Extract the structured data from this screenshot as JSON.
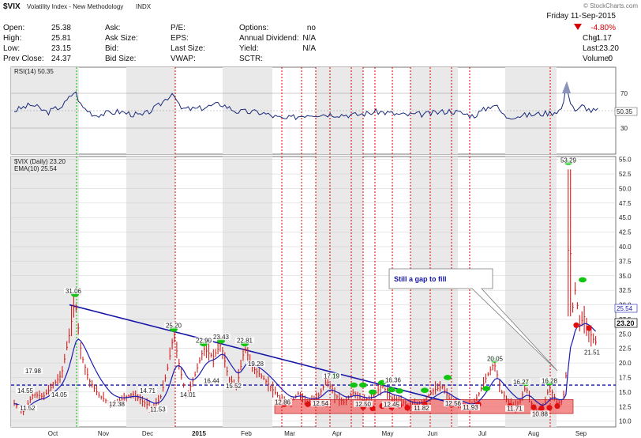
{
  "header": {
    "symbol": "$VIX",
    "name": "Volatility Index - New Methodology",
    "exchange": "INDX",
    "watermark": "© StockCharts.com",
    "date_line": "Friday 11-Sep-2015",
    "change_pct": "-4.80%",
    "chg_label": "Chg:",
    "chg_value": "-1.17",
    "last_label": "Last:",
    "last_value": "23.20",
    "volume_label": "Volume:",
    "volume_value": "0",
    "quote": [
      {
        "label": "Open:",
        "value": "25.38"
      },
      {
        "label": "High:",
        "value": "25.81"
      },
      {
        "label": "Low:",
        "value": "23.15"
      },
      {
        "label": "Prev Close:",
        "value": "24.37"
      }
    ],
    "col2": [
      "Ask:",
      "Ask Size:",
      "Bid:",
      "Bid Size:"
    ],
    "col3": [
      "P/E:",
      "EPS:",
      "Last Size:",
      "VWAP:"
    ],
    "col4": [
      {
        "label": "Options:",
        "value": "no"
      },
      {
        "label": "Annual Dividend:",
        "value": "N/A"
      },
      {
        "label": "Yield:",
        "value": "N/A"
      },
      {
        "label": "SCTR:",
        "value": ""
      }
    ]
  },
  "rsi_panel": {
    "legend": "RSI(14) 50.35",
    "last_value": "50.35",
    "ticks": [
      "70",
      "50",
      "30"
    ]
  },
  "price_panel": {
    "legend_price": "$VIX (Daily) 23.20",
    "legend_ema": "EMA(10) 25.54",
    "ema_last": "25.54",
    "price_last": "23.20",
    "annotation": "Still a gap to fill"
  },
  "colors": {
    "price_bar": "#d32020",
    "ema": "#1b1bb0",
    "trendline": "#1515a8",
    "support_line": "#1515a8",
    "support_box": "#f06a6a",
    "vline_red": "#e00000",
    "vline_green": "#00c000",
    "green_marker": "#11c411",
    "red_marker": "#e01010",
    "shade": "#e9e9e9"
  },
  "chart_data": [
    {
      "type": "line",
      "title": "RSI(14)",
      "ylim": [
        0,
        100
      ],
      "yticks": [
        70,
        50,
        30
      ],
      "series": [
        {
          "name": "RSI(14)",
          "x": [
            "Oct",
            "Nov",
            "Dec",
            "2015",
            "Feb",
            "Mar",
            "Apr",
            "May",
            "Jun",
            "Jul",
            "Aug",
            "Sep"
          ],
          "values": [
            58,
            52,
            50,
            62,
            55,
            44,
            46,
            48,
            52,
            55,
            78,
            50.35
          ]
        }
      ]
    },
    {
      "type": "line",
      "title": "$VIX (Daily)",
      "ylim": [
        10,
        55
      ],
      "yticks": [
        10.0,
        12.5,
        15.0,
        17.5,
        20.0,
        22.5,
        25.0,
        27.5,
        30.0,
        32.5,
        35.0,
        37.5,
        40.0,
        42.5,
        45.0,
        47.5,
        50.0,
        52.5,
        55.0
      ],
      "x_ticks": [
        "Oct",
        "Nov",
        "Dec",
        "2015",
        "Feb",
        "Mar",
        "Apr",
        "May",
        "Jun",
        "Jul",
        "Aug",
        "Sep"
      ],
      "series": [
        {
          "name": "$VIX (Daily)",
          "last": 23.2
        },
        {
          "name": "EMA(10)",
          "last": 25.54
        }
      ],
      "labels": [
        {
          "text": "11.52",
          "x": "Oct",
          "y": 11.52
        },
        {
          "text": "14.55",
          "x": "Oct",
          "y": 14.55
        },
        {
          "text": "14.05",
          "x": "Oct",
          "y": 14.05
        },
        {
          "text": "17.98",
          "x": "Oct",
          "y": 17.98
        },
        {
          "text": "31.06",
          "x": "Oct",
          "y": 31.06
        },
        {
          "text": "12.38",
          "x": "Nov",
          "y": 12.38
        },
        {
          "text": "14.71",
          "x": "Dec",
          "y": 14.71
        },
        {
          "text": "11.53",
          "x": "Dec",
          "y": 11.53
        },
        {
          "text": "25.20",
          "x": "Dec",
          "y": 25.2
        },
        {
          "text": "14.01",
          "x": "2015",
          "y": 14.01
        },
        {
          "text": "22.90",
          "x": "2015",
          "y": 22.9
        },
        {
          "text": "23.43",
          "x": "2015",
          "y": 23.43
        },
        {
          "text": "16.44",
          "x": "2015",
          "y": 16.44
        },
        {
          "text": "15.52",
          "x": "Feb",
          "y": 15.52
        },
        {
          "text": "22.81",
          "x": "Feb",
          "y": 22.81
        },
        {
          "text": "19.28",
          "x": "Feb",
          "y": 19.28
        },
        {
          "text": "12.86",
          "x": "Mar",
          "y": 12.86
        },
        {
          "text": "12.54",
          "x": "Mar",
          "y": 12.54
        },
        {
          "text": "17.19",
          "x": "Apr",
          "y": 17.19
        },
        {
          "text": "12.50",
          "x": "Apr",
          "y": 12.5
        },
        {
          "text": "16.36",
          "x": "May",
          "y": 16.36
        },
        {
          "text": "12.45",
          "x": "May",
          "y": 12.45
        },
        {
          "text": "11.82",
          "x": "May",
          "y": 11.82
        },
        {
          "text": "12.56",
          "x": "Jun",
          "y": 12.56
        },
        {
          "text": "11.93",
          "x": "Jun",
          "y": 11.93
        },
        {
          "text": "20.05",
          "x": "Jul",
          "y": 20.05
        },
        {
          "text": "11.71",
          "x": "Jul",
          "y": 11.71
        },
        {
          "text": "16.27",
          "x": "Jul",
          "y": 16.27
        },
        {
          "text": "16.28",
          "x": "Aug",
          "y": 16.28
        },
        {
          "text": "10.88",
          "x": "Aug",
          "y": 10.88
        },
        {
          "text": "53.29",
          "x": "Aug",
          "y": 53.29
        },
        {
          "text": "21.51",
          "x": "Sep",
          "y": 21.51
        }
      ]
    }
  ]
}
